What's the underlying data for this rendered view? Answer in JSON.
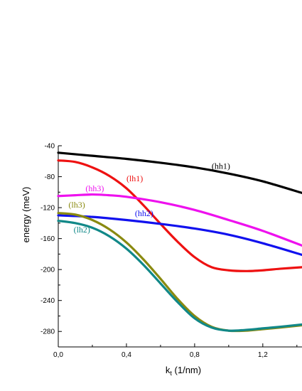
{
  "chart_data": {
    "type": "line",
    "xlabel": "k",
    "xlabel_sub": "t",
    "xlabel_unit": " (1/nm)",
    "ylabel": "energy (meV)",
    "xlim": [
      0.0,
      1.43
    ],
    "ylim": [
      -300,
      -40
    ],
    "xticks": [
      {
        "value": 0.0,
        "label": "0,0"
      },
      {
        "value": 0.4,
        "label": "0,4"
      },
      {
        "value": 0.8,
        "label": "0,8"
      },
      {
        "value": 1.2,
        "label": "1,2"
      }
    ],
    "yticks": [
      -40,
      -80,
      -120,
      -160,
      -200,
      -240,
      -280
    ],
    "grid": false,
    "series": [
      {
        "name": "(hh1)",
        "color": "#000000",
        "x": [
          0.0,
          0.2,
          0.4,
          0.6,
          0.8,
          1.0,
          1.2,
          1.43
        ],
        "y": [
          -49,
          -53,
          -57,
          -62,
          -68,
          -76,
          -86,
          -101
        ]
      },
      {
        "name": "(lh1)",
        "color": "#ee1111",
        "x": [
          0.0,
          0.1,
          0.2,
          0.3,
          0.4,
          0.5,
          0.6,
          0.7,
          0.8,
          0.9,
          1.0,
          1.1,
          1.2,
          1.3,
          1.43
        ],
        "y": [
          -59,
          -61,
          -68,
          -79,
          -95,
          -117,
          -141,
          -164,
          -184,
          -197,
          -201,
          -202,
          -201,
          -199,
          -197
        ]
      },
      {
        "name": "(hh3)",
        "color": "#ee11ee",
        "x": [
          0.0,
          0.1,
          0.2,
          0.3,
          0.4,
          0.6,
          0.8,
          1.0,
          1.2,
          1.43
        ],
        "y": [
          -105,
          -104,
          -103,
          -104,
          -106,
          -113,
          -123,
          -136,
          -150,
          -169
        ]
      },
      {
        "name": "(hh2)",
        "color": "#1111ee",
        "x": [
          0.0,
          0.2,
          0.4,
          0.6,
          0.8,
          1.0,
          1.2,
          1.43
        ],
        "y": [
          -130,
          -132,
          -136,
          -141,
          -147,
          -155,
          -166,
          -181
        ]
      },
      {
        "name": "(lh3)",
        "color": "#8a8a10",
        "x": [
          0.0,
          0.1,
          0.2,
          0.3,
          0.4,
          0.5,
          0.6,
          0.7,
          0.8,
          0.9,
          1.0,
          1.1,
          1.2,
          1.3,
          1.43
        ],
        "y": [
          -127,
          -129,
          -136,
          -148,
          -165,
          -187,
          -212,
          -238,
          -260,
          -274,
          -279,
          -279,
          -277,
          -275,
          -272
        ]
      },
      {
        "name": "(lh2)",
        "color": "#118888",
        "x": [
          0.0,
          0.1,
          0.2,
          0.3,
          0.4,
          0.5,
          0.6,
          0.7,
          0.8,
          0.9,
          1.0,
          1.1,
          1.2,
          1.3,
          1.43
        ],
        "y": [
          -137,
          -140,
          -146,
          -157,
          -173,
          -194,
          -218,
          -242,
          -263,
          -275,
          -279,
          -278,
          -276,
          -274,
          -271
        ]
      }
    ],
    "annotations": [
      {
        "text": "(hh1)",
        "series": "(hh1)",
        "color": "#000000",
        "x": 0.9,
        "y": -70
      },
      {
        "text": "(lh1)",
        "series": "(lh1)",
        "color": "#ee1111",
        "x": 0.4,
        "y": -86
      },
      {
        "text": "(hh3)",
        "series": "(hh3)",
        "color": "#ee11ee",
        "x": 0.16,
        "y": -99
      },
      {
        "text": "(hh2)",
        "series": "(hh2)",
        "color": "#1111ee",
        "x": 0.45,
        "y": -131
      },
      {
        "text": "(lh3)",
        "series": "(lh3)",
        "color": "#8a8a10",
        "x": 0.06,
        "y": -120
      },
      {
        "text": "(lh2)",
        "series": "(lh2)",
        "color": "#118888",
        "x": 0.09,
        "y": -152
      }
    ]
  }
}
